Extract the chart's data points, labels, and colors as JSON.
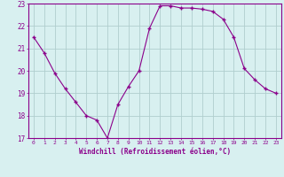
{
  "hours": [
    0,
    1,
    2,
    3,
    4,
    5,
    6,
    7,
    8,
    9,
    10,
    11,
    12,
    13,
    14,
    15,
    16,
    17,
    18,
    19,
    20,
    21,
    22,
    23
  ],
  "windchill": [
    21.5,
    20.8,
    19.9,
    19.2,
    18.6,
    18.0,
    17.8,
    17.0,
    18.5,
    19.3,
    20.0,
    21.9,
    22.9,
    22.9,
    22.8,
    22.8,
    22.75,
    22.65,
    22.3,
    21.5,
    20.1,
    19.6,
    19.2,
    19.0
  ],
  "line_color": "#8B008B",
  "marker": "+",
  "marker_size": 3,
  "bg_color": "#d8f0f0",
  "grid_color": "#b0cece",
  "xlabel": "Windchill (Refroidissement éolien,°C)",
  "xlabel_color": "#8B008B",
  "tick_color": "#8B008B",
  "ylim": [
    17,
    23
  ],
  "xlim": [
    -0.5,
    23.5
  ],
  "yticks": [
    17,
    18,
    19,
    20,
    21,
    22,
    23
  ],
  "xticks": [
    0,
    1,
    2,
    3,
    4,
    5,
    6,
    7,
    8,
    9,
    10,
    11,
    12,
    13,
    14,
    15,
    16,
    17,
    18,
    19,
    20,
    21,
    22,
    23
  ]
}
